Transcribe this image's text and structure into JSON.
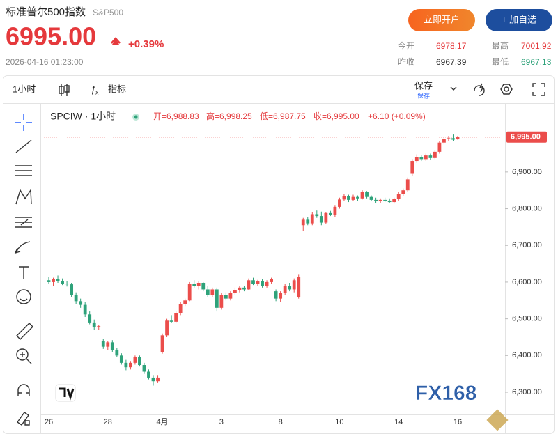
{
  "header": {
    "title": "标准普尔500指数",
    "symbol": "S&P500",
    "price": "6995.00",
    "change": "+0.39%",
    "datetime": "2026-04-16 01:23:00",
    "buttons": [
      "立即开户",
      "+ 加自选"
    ],
    "stats": [
      [
        "今开",
        "6978.17"
      ],
      [
        "最高",
        "7001.92"
      ],
      [
        "昨收",
        "6967.39"
      ],
      [
        "最低",
        "6967.13"
      ]
    ]
  },
  "toolbar": {
    "interval": "1小时",
    "indicators": "指标",
    "save": "保存",
    "save_sub": "保存"
  },
  "chart_data": {
    "type": "candlestick",
    "title": "SPCIW · 1小时",
    "info": [
      "开=6,988.83",
      "高=6,998.25",
      "低=6,987.75",
      "收=6,995.00",
      "+6.10 (+0.09%)"
    ],
    "watermark": "FX168",
    "up_color": "#eb4d4b",
    "down_color": "#2ea27a",
    "grid": false,
    "categories": [
      "26",
      null,
      null,
      null,
      null,
      null,
      null,
      null,
      null,
      null,
      null,
      null,
      null,
      "28",
      null,
      null,
      null,
      null,
      null,
      null,
      null,
      null,
      null,
      null,
      null,
      "4月",
      null,
      null,
      null,
      null,
      null,
      null,
      null,
      null,
      null,
      null,
      null,
      null,
      "3",
      null,
      null,
      null,
      null,
      null,
      null,
      null,
      null,
      null,
      null,
      null,
      null,
      "8",
      null,
      null,
      null,
      null,
      null,
      null,
      null,
      null,
      null,
      null,
      null,
      null,
      "10",
      null,
      null,
      null,
      null,
      null,
      null,
      null,
      null,
      null,
      null,
      null,
      null,
      "14",
      null,
      null,
      null,
      null,
      null,
      null,
      null,
      null,
      null,
      null,
      null,
      null,
      "16"
    ],
    "open": [
      6605,
      6600,
      6608,
      6602,
      6596,
      6594,
      6565,
      6548,
      6538,
      6512,
      6490,
      6478,
      6440,
      6424,
      6436,
      6414,
      6400,
      6380,
      6368,
      6380,
      6395,
      6374,
      6356,
      6340,
      6330,
      6410,
      6455,
      6495,
      6492,
      6515,
      6540,
      6550,
      6595,
      6590,
      6598,
      6580,
      6565,
      6580,
      6530,
      6565,
      6555,
      6570,
      6578,
      6585,
      6580,
      6605,
      6596,
      6602,
      6590,
      6600,
      6575,
      6555,
      6570,
      6590,
      6580,
      6560,
      6755,
      6770,
      6760,
      6785,
      6780,
      6762,
      6788,
      6784,
      6805,
      6825,
      6834,
      6824,
      6832,
      6828,
      6845,
      6832,
      6824,
      6820,
      6824,
      6822,
      6818,
      6826,
      6840,
      6850,
      6895,
      6930,
      6940,
      6935,
      6945,
      6938,
      6955,
      6980,
      6990,
      6992,
      6988.83
    ],
    "high": [
      6615,
      6612,
      6618,
      6610,
      6602,
      6598,
      6572,
      6555,
      6545,
      6520,
      6498,
      6484,
      6446,
      6440,
      6442,
      6420,
      6406,
      6388,
      6385,
      6400,
      6400,
      6380,
      6362,
      6345,
      6345,
      6460,
      6500,
      6510,
      6520,
      6545,
      6555,
      6600,
      6605,
      6602,
      6600,
      6590,
      6585,
      6585,
      6570,
      6572,
      6575,
      6585,
      6590,
      6590,
      6610,
      6612,
      6606,
      6608,
      6605,
      6612,
      6580,
      6575,
      6595,
      6598,
      6610,
      6620,
      6775,
      6778,
      6790,
      6795,
      6792,
      6790,
      6794,
      6810,
      6830,
      6840,
      6838,
      6838,
      6836,
      6850,
      6848,
      6836,
      6830,
      6828,
      6830,
      6828,
      6830,
      6845,
      6855,
      6885,
      6935,
      6948,
      6945,
      6950,
      6950,
      6960,
      6985,
      6995,
      6998,
      7002,
      6998.25
    ],
    "low": [
      6595,
      6590,
      6598,
      6592,
      6588,
      6560,
      6540,
      6530,
      6505,
      6485,
      6470,
      6470,
      6418,
      6415,
      6410,
      6395,
      6375,
      6360,
      6362,
      6375,
      6370,
      6350,
      6335,
      6318,
      6325,
      6405,
      6450,
      6488,
      6488,
      6510,
      6535,
      6548,
      6585,
      6580,
      6575,
      6560,
      6560,
      6520,
      6525,
      6550,
      6550,
      6565,
      6572,
      6575,
      6578,
      6592,
      6590,
      6585,
      6585,
      6595,
      6548,
      6545,
      6565,
      6575,
      6572,
      6555,
      6740,
      6755,
      6755,
      6775,
      6755,
      6758,
      6780,
      6778,
      6800,
      6820,
      6818,
      6820,
      6822,
      6825,
      6828,
      6820,
      6816,
      6815,
      6818,
      6816,
      6814,
      6822,
      6835,
      6846,
      6890,
      6925,
      6930,
      6930,
      6932,
      6935,
      6950,
      6975,
      6984,
      6985,
      6987.75
    ],
    "close": [
      6600,
      6608,
      6602,
      6596,
      6594,
      6565,
      6548,
      6538,
      6512,
      6490,
      6478,
      6480,
      6424,
      6436,
      6414,
      6400,
      6380,
      6368,
      6380,
      6395,
      6374,
      6356,
      6340,
      6330,
      6340,
      6455,
      6495,
      6492,
      6515,
      6540,
      6550,
      6595,
      6590,
      6598,
      6580,
      6565,
      6580,
      6530,
      6565,
      6555,
      6570,
      6578,
      6585,
      6580,
      6605,
      6596,
      6602,
      6590,
      6600,
      6608,
      6555,
      6570,
      6590,
      6580,
      6605,
      6615,
      6770,
      6760,
      6785,
      6780,
      6762,
      6788,
      6784,
      6805,
      6825,
      6834,
      6824,
      6832,
      6828,
      6845,
      6832,
      6824,
      6820,
      6824,
      6822,
      6818,
      6826,
      6840,
      6850,
      6880,
      6930,
      6940,
      6935,
      6945,
      6938,
      6955,
      6980,
      6990,
      6992,
      6988,
      6995
    ],
    "last_price": {
      "value": 6995,
      "label": "6,995.00"
    },
    "ylim": [
      6245,
      7080
    ],
    "yticks": [
      {
        "value": 6300,
        "label": "6,300.00"
      },
      {
        "value": 6400,
        "label": "6,400.00"
      },
      {
        "value": 6500,
        "label": "6,500.00"
      },
      {
        "value": 6600,
        "label": "6,600.00"
      },
      {
        "value": 6700,
        "label": "6,700.00"
      },
      {
        "value": 6800,
        "label": "6,800.00"
      },
      {
        "value": 6900,
        "label": "6,900.00"
      }
    ]
  }
}
